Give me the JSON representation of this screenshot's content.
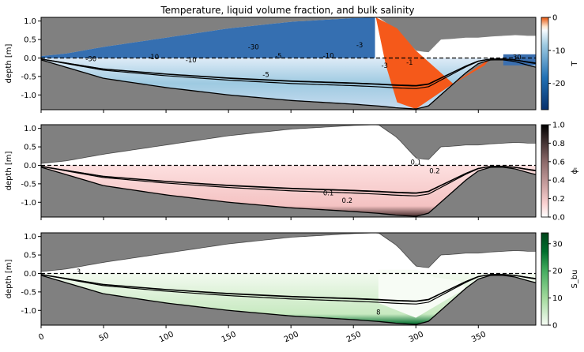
{
  "title": "Temperature, liquid volume fraction, and bulk salinity",
  "x_ticks": [
    0,
    50,
    100,
    150,
    200,
    250,
    300,
    350
  ],
  "xlim": [
    0,
    396
  ],
  "panels": [
    {
      "id": "temperature",
      "ylabel": "depth [m]",
      "cbar_label": "T",
      "cbar_ticks": [
        0,
        -10,
        -20
      ],
      "cbar_range": [
        -28,
        0
      ],
      "contour_labels": [
        "-30",
        "-10",
        "-5",
        "-3",
        "-1",
        "-10",
        "-5",
        "-30",
        "-10",
        "-30",
        "-3"
      ]
    },
    {
      "id": "liquid_fraction",
      "ylabel": "depth [m]",
      "cbar_label": "ϕₗ",
      "cbar_ticks": [
        0.0,
        0.2,
        0.4,
        0.6,
        0.8,
        1.0
      ],
      "cbar_range": [
        0,
        1
      ],
      "contour_labels": [
        "0.1",
        "0.2",
        "0.2",
        "0.1"
      ]
    },
    {
      "id": "bulk_salinity",
      "ylabel": "depth [m]",
      "cbar_label": "S_bu",
      "cbar_ticks": [
        0,
        10,
        20,
        30
      ],
      "cbar_range": [
        0,
        34
      ],
      "contour_labels": [
        "3",
        "8"
      ]
    }
  ],
  "chart_data": {
    "type": "heatmap",
    "title": "Temperature, liquid volume fraction, and bulk salinity",
    "xlabel": "",
    "xlim": [
      0,
      396
    ],
    "ylim": [
      -1.4,
      1.1
    ],
    "y_ticks": [
      -1.0,
      -0.5,
      0.0,
      0.5,
      1.0
    ],
    "surface_x": [
      0,
      20,
      50,
      100,
      150,
      200,
      250,
      270,
      285,
      300,
      310,
      320,
      330,
      340,
      350,
      360,
      370,
      380,
      390,
      396
    ],
    "surface_top": [
      0.05,
      0.12,
      0.3,
      0.55,
      0.8,
      0.98,
      1.08,
      1.1,
      0.75,
      0.2,
      0.15,
      0.5,
      0.52,
      0.55,
      0.55,
      0.58,
      0.6,
      0.62,
      0.6,
      0.6
    ],
    "ice_bottom": [
      -0.05,
      -0.25,
      -0.55,
      -0.8,
      -1.0,
      -1.15,
      -1.25,
      -1.3,
      -1.35,
      -1.38,
      -1.3,
      -1.0,
      -0.7,
      -0.4,
      -0.15,
      -0.05,
      -0.05,
      -0.1,
      -0.2,
      -0.25
    ],
    "sea_level": 0.0
  }
}
